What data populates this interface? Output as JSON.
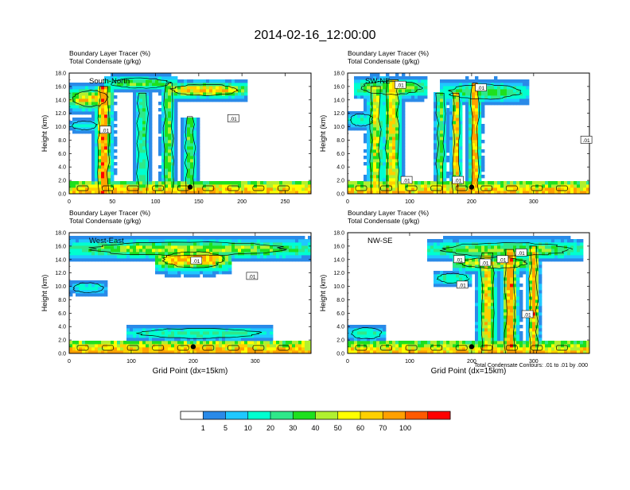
{
  "title": "2014-02-16_12:00:00",
  "colors": {
    "background": "#ffffff",
    "frame": "#000000",
    "contour": "#000000"
  },
  "chart_data": [
    {
      "type": "heatmap",
      "panel_label": "South-North",
      "title_line1": "Boundary Layer Tracer   (%)",
      "title_line2": "Total Condensate   (g/kg)",
      "ylabel": "Height (km)",
      "xlabel": "",
      "xlim": [
        0,
        280
      ],
      "ylim": [
        0,
        18
      ],
      "xticks": [
        0,
        50,
        100,
        150,
        200,
        250
      ],
      "yticks": [
        "0.0",
        "2.0",
        "4.0",
        "6.0",
        "8.0",
        "10.0",
        "12.0",
        "14.0",
        "16.0",
        "18.0"
      ],
      "contour_labels": [
        {
          "text": ".01",
          "x": 42,
          "y": 9.5
        },
        {
          "text": ".01",
          "x": 190,
          "y": 11.2
        }
      ],
      "marker_point": {
        "x": 140,
        "y": 1.0
      },
      "plumes": [
        {
          "x": 40,
          "w": 6,
          "top": 16.0,
          "peak": 92
        },
        {
          "x": 85,
          "w": 6,
          "top": 15.0,
          "peak": 25
        },
        {
          "x": 115,
          "w": 5,
          "top": 16.5,
          "peak": 40
        },
        {
          "x": 140,
          "w": 5,
          "top": 11.5,
          "peak": 35
        }
      ],
      "anvils": [
        {
          "x0": 0,
          "x1": 50,
          "y": 14.2,
          "h": 2.6,
          "peak": 62
        },
        {
          "x0": 40,
          "x1": 125,
          "y": 16.5,
          "h": 1.6,
          "peak": 35
        },
        {
          "x0": 110,
          "x1": 205,
          "y": 15.5,
          "h": 1.8,
          "peak": 68
        },
        {
          "x0": 0,
          "x1": 35,
          "y": 10.2,
          "h": 1.4,
          "peak": 14
        }
      ],
      "surface": {
        "h": 1.7,
        "peak": 78
      }
    },
    {
      "type": "heatmap",
      "panel_label": "SW-NE",
      "title_line1": "Boundary Layer Tracer   (%)",
      "title_line2": "Total Condensate   (g/kg)",
      "ylabel": "Height (km)",
      "xlabel": "",
      "xlim": [
        0,
        390
      ],
      "ylim": [
        0,
        18
      ],
      "xticks": [
        0,
        100,
        200,
        300
      ],
      "yticks": [
        "0.0",
        "2.0",
        "4.0",
        "6.0",
        "8.0",
        "10.0",
        "12.0",
        "14.0",
        "16.0",
        "18.0"
      ],
      "contour_labels": [
        {
          "text": ".01",
          "x": 95,
          "y": 2.0
        },
        {
          "text": ".01",
          "x": 178,
          "y": 2.0
        },
        {
          "text": ".01",
          "x": 385,
          "y": 8.0
        },
        {
          "text": ".01",
          "x": 85,
          "y": 16.2
        },
        {
          "text": ".01",
          "x": 215,
          "y": 15.8
        }
      ],
      "marker_point": {
        "x": 200,
        "y": 1.0
      },
      "plumes": [
        {
          "x": 45,
          "w": 8,
          "top": 16.0,
          "peak": 55
        },
        {
          "x": 72,
          "w": 10,
          "top": 17.0,
          "peak": 60
        },
        {
          "x": 150,
          "w": 6,
          "top": 15.0,
          "peak": 35
        },
        {
          "x": 175,
          "w": 5,
          "top": 15.0,
          "peak": 75
        },
        {
          "x": 205,
          "w": 6,
          "top": 16.5,
          "peak": 82
        }
      ],
      "anvils": [
        {
          "x0": 10,
          "x1": 130,
          "y": 15.8,
          "h": 2.2,
          "peak": 42
        },
        {
          "x0": 150,
          "x1": 290,
          "y": 15.2,
          "h": 2.4,
          "peak": 30
        },
        {
          "x0": 0,
          "x1": 45,
          "y": 11.0,
          "h": 2.0,
          "peak": 18
        }
      ],
      "surface": {
        "h": 1.9,
        "peak": 75
      }
    },
    {
      "type": "heatmap",
      "panel_label": "West-East",
      "title_line1": "Boundary Layer Tracer   (%)",
      "title_line2": "Total Condensate   (g/kg)",
      "ylabel": "Height (km)",
      "xlabel": "Grid Point (dx=15km)",
      "xlim": [
        0,
        390
      ],
      "ylim": [
        0,
        18
      ],
      "xticks": [
        0,
        100,
        200,
        300
      ],
      "yticks": [
        "0.0",
        "2.0",
        "4.0",
        "6.0",
        "8.0",
        "10.0",
        "12.0",
        "14.0",
        "16.0",
        "18.0"
      ],
      "contour_labels": [
        {
          "text": ".01",
          "x": 205,
          "y": 13.8
        },
        {
          "text": ".01",
          "x": 295,
          "y": 11.5
        }
      ],
      "marker_point": {
        "x": 200,
        "y": 1.0
      },
      "plumes": [],
      "anvils": [
        {
          "x0": 0,
          "x1": 390,
          "y": 15.6,
          "h": 2.2,
          "peak": 45
        },
        {
          "x0": 140,
          "x1": 260,
          "y": 14.0,
          "h": 2.6,
          "peak": 75
        },
        {
          "x0": 0,
          "x1": 60,
          "y": 9.8,
          "h": 1.6,
          "peak": 14
        },
        {
          "x0": 90,
          "x1": 330,
          "y": 3.0,
          "h": 1.6,
          "peak": 22
        }
      ],
      "surface": {
        "h": 1.9,
        "peak": 80
      }
    },
    {
      "type": "heatmap",
      "panel_label": "NW-SE",
      "title_line1": "Boundary Layer Tracer   (%)",
      "title_line2": "Total Condensate   (g/kg)",
      "ylabel": "Height (km)",
      "xlabel": "Grid Point (dx=15km)",
      "xlim": [
        0,
        390
      ],
      "ylim": [
        0,
        18
      ],
      "xticks": [
        0,
        100,
        200,
        300
      ],
      "yticks": [
        "0.0",
        "2.0",
        "4.0",
        "6.0",
        "8.0",
        "10.0",
        "12.0",
        "14.0",
        "16.0",
        "18.0"
      ],
      "contour_labels": [
        {
          "text": ".01",
          "x": 180,
          "y": 14.0
        },
        {
          "text": ".01",
          "x": 222,
          "y": 13.5
        },
        {
          "text": ".01",
          "x": 250,
          "y": 14.0
        },
        {
          "text": ".01",
          "x": 280,
          "y": 15.0
        },
        {
          "text": ".01",
          "x": 290,
          "y": 5.8
        },
        {
          "text": ".01",
          "x": 185,
          "y": 10.2
        }
      ],
      "marker_point": {
        "x": 200,
        "y": 1.0
      },
      "plumes": [
        {
          "x": 225,
          "w": 10,
          "top": 15.0,
          "peak": 60
        },
        {
          "x": 262,
          "w": 8,
          "top": 15.5,
          "peak": 88
        },
        {
          "x": 300,
          "w": 6,
          "top": 16.0,
          "peak": 82
        }
      ],
      "anvils": [
        {
          "x0": 130,
          "x1": 380,
          "y": 15.5,
          "h": 2.2,
          "peak": 40
        },
        {
          "x0": 170,
          "x1": 300,
          "y": 13.5,
          "h": 1.8,
          "peak": 55
        },
        {
          "x0": 140,
          "x1": 200,
          "y": 11.2,
          "h": 1.6,
          "peak": 22
        },
        {
          "x0": 0,
          "x1": 60,
          "y": 3.0,
          "h": 1.8,
          "peak": 18
        }
      ],
      "surface": {
        "h": 1.8,
        "peak": 70
      }
    }
  ],
  "contour_note": "Total Condensate Contours: .01 to .01 by .000",
  "colorbar": {
    "levels": [
      1,
      5,
      10,
      20,
      30,
      40,
      50,
      60,
      70,
      100
    ],
    "colors": [
      "#ffffff",
      "#2a8ae8",
      "#1fc8ff",
      "#00ffd0",
      "#2ee88a",
      "#1ee01e",
      "#b0f030",
      "#ffff00",
      "#ffd000",
      "#ffa000",
      "#ff5a00",
      "#ff0000"
    ]
  }
}
